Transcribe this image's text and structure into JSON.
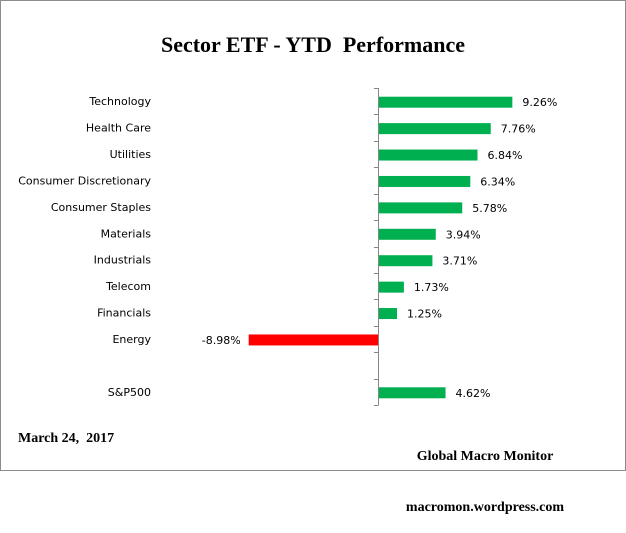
{
  "chart_data": {
    "type": "bar",
    "orientation": "horizontal",
    "title": "Sector ETF - YTD  Performance",
    "xlabel": "",
    "ylabel": "",
    "categories": [
      "Technology",
      "Health Care",
      "Utilities",
      "Consumer Discretionary",
      "Consumer Staples",
      "Materials",
      "Industrials",
      "Telecom",
      "Financials",
      "Energy",
      "",
      "S&P500"
    ],
    "values": [
      9.26,
      7.76,
      6.84,
      6.34,
      5.78,
      3.94,
      3.71,
      1.73,
      1.25,
      -8.98,
      null,
      4.62
    ],
    "data_labels": [
      "9.26%",
      "7.76%",
      "6.84%",
      "6.34%",
      "5.78%",
      "3.94%",
      "3.71%",
      "1.73%",
      "1.25%",
      "-8.98%",
      "",
      "4.62%"
    ],
    "units": "%",
    "xlim": [
      -17,
      14
    ],
    "grid": false,
    "legend": "none",
    "colors": {
      "positive": "#00b050",
      "negative": "#ff0000",
      "axis": "#868686"
    }
  },
  "footer": {
    "date": "March 24,  2017",
    "source_line1": "Global Macro Monitor",
    "source_line2": "macromon.wordpress.com"
  }
}
